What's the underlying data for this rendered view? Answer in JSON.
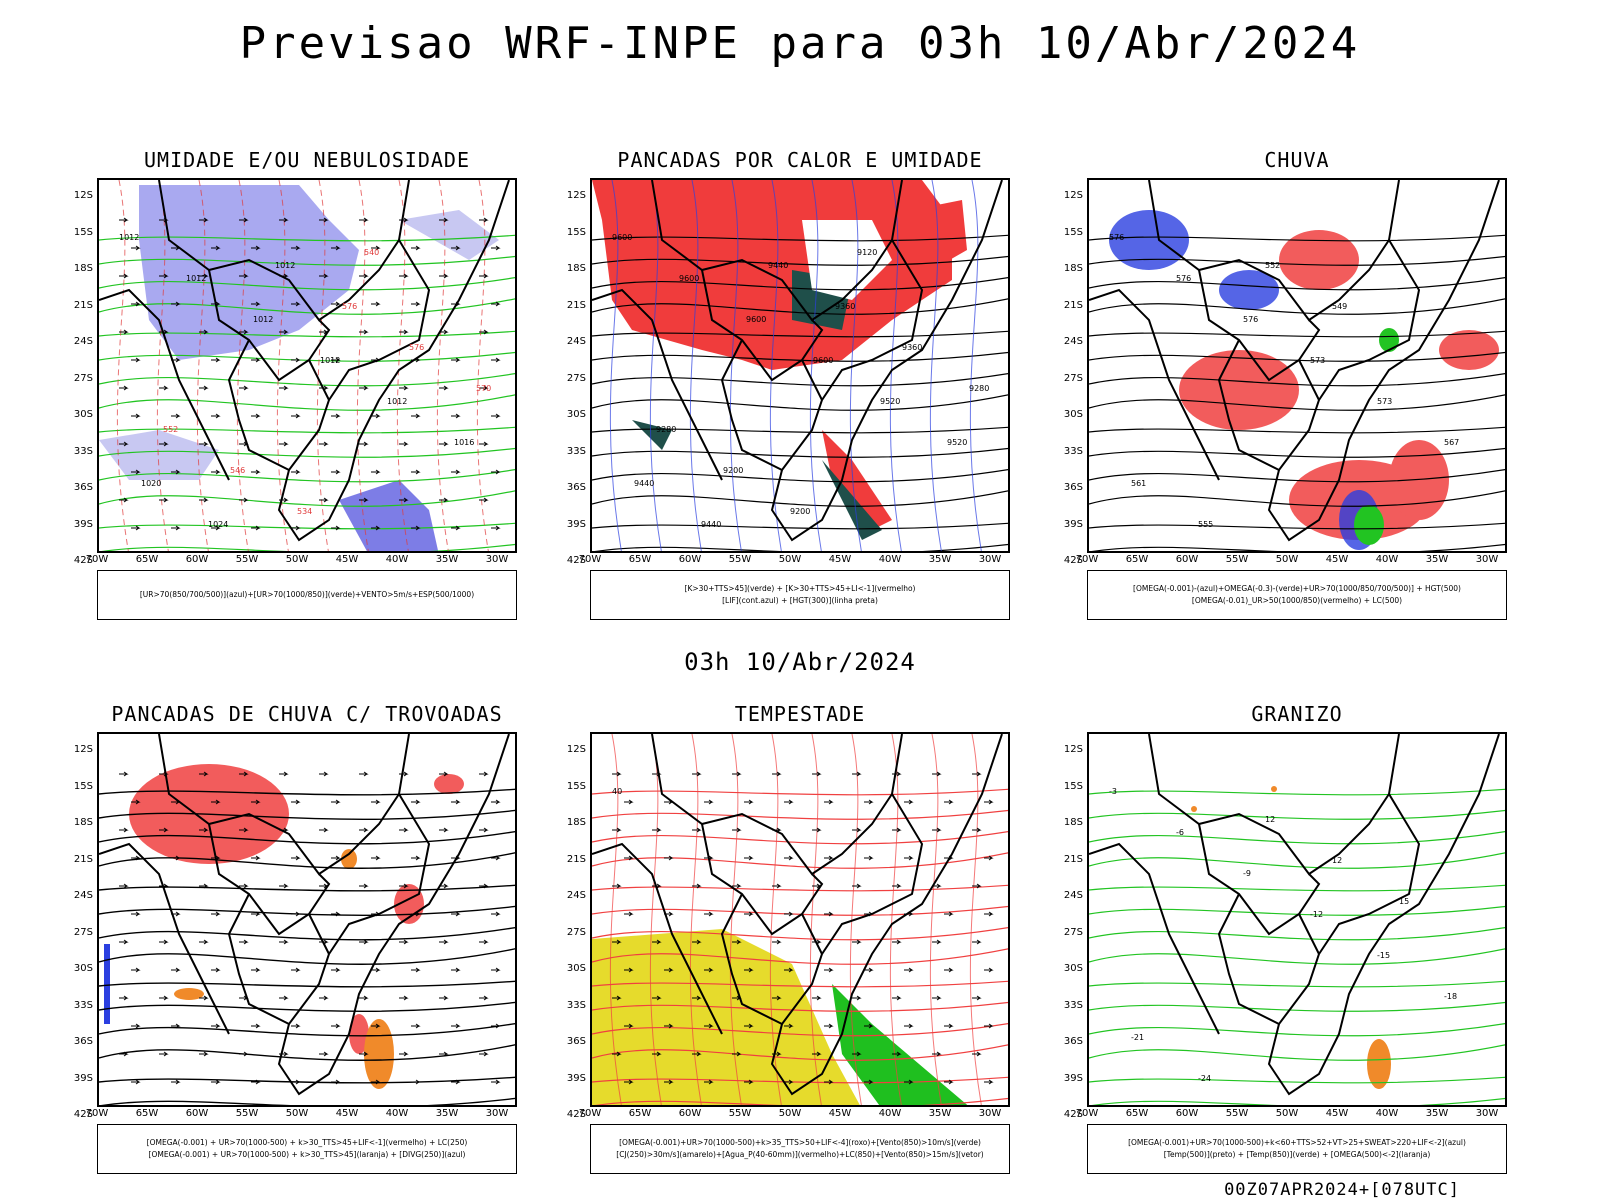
{
  "title": "Previsao WRF-INPE  para 03h 10/Abr/2024",
  "subtitle": "03h 10/Abr/2024",
  "footer": "00Z07APR2024+[078UTC]",
  "lat_labels": [
    "12S",
    "15S",
    "18S",
    "21S",
    "24S",
    "27S",
    "30S",
    "33S",
    "36S",
    "39S",
    "42S"
  ],
  "lon_labels": [
    "70W",
    "65W",
    "60W",
    "55W",
    "50W",
    "45W",
    "40W",
    "35W",
    "30W"
  ],
  "panels": [
    {
      "id": "umidade",
      "title": "UMIDADE E/OU NEBULOSIDADE",
      "legend": [
        "[UR>70(850/700/500)](azul)+[UR>70(1000/850)](verde)+VENTO>5m/s+ESP(500/1000)"
      ],
      "colors": {
        "fill": "#a9a9f0",
        "contour1": "#22c422",
        "contour2": "#e03a3a"
      },
      "contour_labels": [
        "1012",
        "1012",
        "1012",
        "1012",
        "1012",
        "1016",
        "1020",
        "1024",
        "1012",
        "576",
        "576",
        "570",
        "552",
        "546",
        "534",
        "540"
      ]
    },
    {
      "id": "pancadas-calor",
      "title": "PANCADAS POR CALOR E UMIDADE",
      "legend": [
        "[K>30+TTS>45](verde) + [K>30+TTS>45+LI<-1](vermelho)",
        "[LIF](cont.azul) + [HGT(300)](linha preta)"
      ],
      "colors": {
        "fill": "#f03c3c",
        "fill2": "#1f4f4a",
        "contour": "#2b3fe0"
      },
      "contour_labels": [
        "9600",
        "9600",
        "9600",
        "9600",
        "9520",
        "9520",
        "9440",
        "9440",
        "9440",
        "9360",
        "9360",
        "9280",
        "9280",
        "9200",
        "9200",
        "9120"
      ]
    },
    {
      "id": "chuva",
      "title": "CHUVA",
      "legend": [
        "[OMEGA(-0.001)-(azul)+OMEGA(-0.3)-(verde)+UR>70(1000/850/700/500)] + HGT(500)",
        "[OMEGA(-0.01)_UR>50(1000/850)(vermelho) + LC(500)"
      ],
      "colors": {
        "red": "#f04040",
        "blue": "#2b3fe0",
        "green": "#22c422"
      },
      "contour_labels": [
        "576",
        "576",
        "576",
        "573",
        "573",
        "567",
        "561",
        "555",
        "552",
        "549"
      ]
    },
    {
      "id": "pancadas-trovoadas",
      "title": "PANCADAS DE CHUVA C/ TROVOADAS",
      "legend": [
        "[OMEGA(-0.001) + UR>70(1000-500) + k>30_TTS>45+LIF<-1](vermelho) + LC(250)",
        "[OMEGA(-0.001) + UR>70(1000-500) + k>30_TTS>45](laranja) + [DIVG(250)](azul)"
      ],
      "colors": {
        "red": "#f04040",
        "orange": "#f08a2a",
        "blue": "#2b3fe0"
      },
      "contour_labels": []
    },
    {
      "id": "tempestade",
      "title": "TEMPESTADE",
      "legend": [
        "[OMEGA(-0.001)+UR>70(1000-500)+k>35_TTS>50+LIF<-4](roxo)+[Vento(850)>10m/s](verde)",
        "[CJ(250)>30m/s](amarelo)+[Agua_P(40-60mm)](vermelho)+LC(850)+[Vento(850)>15m/s](vetor)"
      ],
      "colors": {
        "yellow": "#e6db2c",
        "green": "#1fbf1f",
        "red": "#f04040"
      },
      "contour_labels": [
        "40"
      ]
    },
    {
      "id": "granizo",
      "title": "GRANIZO",
      "legend": [
        "[OMEGA(-0.001)+UR>70(1000-500)+k<60+TTS>52+VT>25+SWEAT>220+LIF<-2](azul)",
        "[Temp(500)](preto) + [Temp(850)](verde) + [OMEGA(500)<-2](laranja)"
      ],
      "colors": {
        "green": "#22c422",
        "orange": "#f08a2a",
        "blue": "#2b3fe0"
      },
      "contour_labels": [
        "-3",
        "-6",
        "-9",
        "-12",
        "-15",
        "-18",
        "-21",
        "-24",
        "12",
        "12",
        "15"
      ]
    }
  ]
}
